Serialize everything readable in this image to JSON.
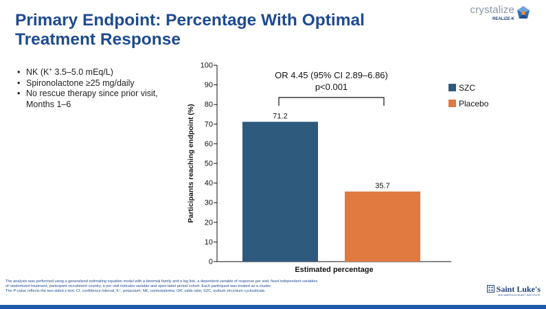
{
  "slide": {
    "title": "Primary Endpoint: Percentage With Optimal Treatment Response",
    "bullets": [
      {
        "pre": "NK (K",
        "sup": "+",
        "post": " 3.5–5.0 mEq/L)"
      },
      {
        "text": "Spironolactone ≥25 mg/daily"
      },
      {
        "text": "No rescue therapy since prior visit, Months 1–6"
      }
    ],
    "footnote": {
      "line1": "The analysis was performed using a generalized estimating equation model with a binomial family and a log link, a dependent variable of response per visit, fixed independent variables",
      "line2": "of randomized treatment, participant recruitment country, a per visit indicator variable and open-label period cohort. Each participant was treated as a cluster.",
      "line3_pre": "The ",
      "line3_italic": "P",
      "line3_post": "-value reflects the two-sided z-test. CI, confidence interval; K⁺, potassium; NK, normokalemia; OR, odds ratio; SZC, sodium zirconium cyclosilicate."
    },
    "logos": {
      "crystalize_word": "crystalize",
      "crystalize_sub": "REALIZE-K",
      "saint_lukes_name": "Saint Luke's",
      "saint_lukes_sub": "MID AMERICA HEART INSTITUTE"
    },
    "colors": {
      "title": "#1e4b8f",
      "bottom_bar": "#1e5aa8"
    }
  },
  "chart_data": {
    "type": "bar",
    "categories": [
      "Estimated percentage"
    ],
    "series": [
      {
        "name": "SZC",
        "values": [
          71.2
        ],
        "color": "#2e5a7e"
      },
      {
        "name": "Placebo",
        "values": [
          35.7
        ],
        "color": "#e07a41"
      }
    ],
    "data_labels": [
      "71.2",
      "35.7"
    ],
    "xlabel": "Estimated percentage",
    "ylabel": "Participants reaching endpoint (%)",
    "ylim": [
      0,
      100
    ],
    "yticks": [
      0,
      10,
      20,
      30,
      40,
      50,
      60,
      70,
      80,
      90,
      100
    ],
    "grid": false,
    "legend_position": "right",
    "annotation": {
      "line1": "OR 4.45 (95% CI 2.89–6.86)",
      "line2": "p<0.001"
    }
  }
}
